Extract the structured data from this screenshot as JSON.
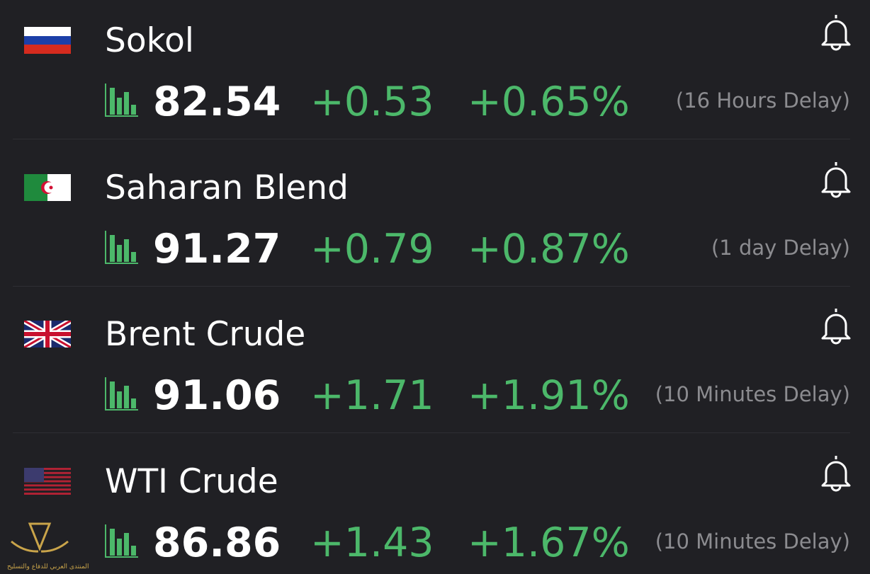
{
  "quotes": [
    {
      "name": "Sokol",
      "price": "82.54",
      "change": "+0.53",
      "percent": "+0.65%",
      "delay": "(16 Hours Delay)"
    },
    {
      "name": "Saharan Blend",
      "price": "91.27",
      "change": "+0.79",
      "percent": "+0.87%",
      "delay": "(1 day Delay)"
    },
    {
      "name": "Brent Crude",
      "price": "91.06",
      "change": "+1.71",
      "percent": "+1.91%",
      "delay": "(10 Minutes Delay)"
    },
    {
      "name": "WTI Crude",
      "price": "86.86",
      "change": "+1.43",
      "percent": "+1.67%",
      "delay": "(10 Minutes Delay)"
    }
  ],
  "watermark": "المنتدى العربي للدفاع والتسليح"
}
